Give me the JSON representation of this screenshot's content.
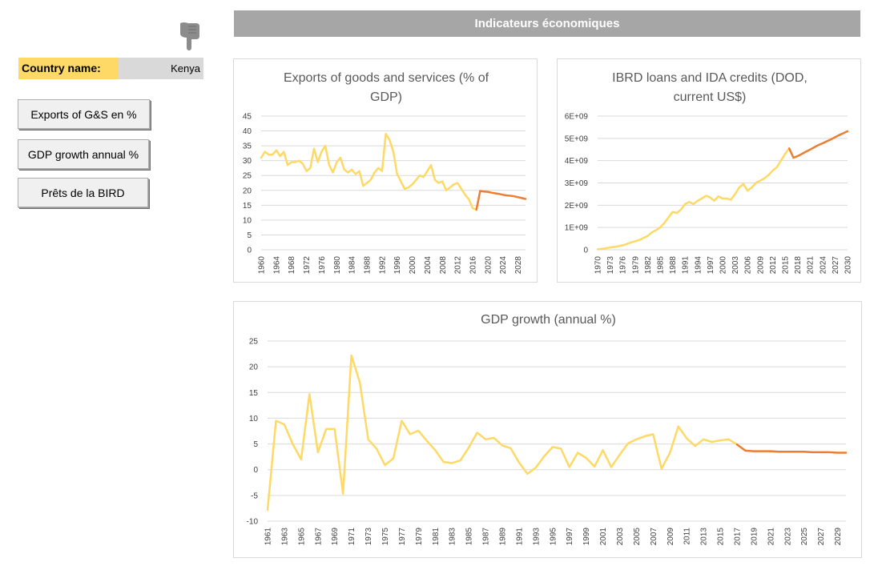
{
  "header": {
    "title": "Indicateurs économiques"
  },
  "country": {
    "label": "Country name:",
    "value": "Kenya"
  },
  "buttons": [
    {
      "label": "Exports of G&S en %"
    },
    {
      "label": "GDP growth annual %"
    },
    {
      "label": "Prêts de la BIRD"
    }
  ],
  "colors": {
    "historical": "#ffd966",
    "forecast": "#ed7d31",
    "header": "#a6a6a6",
    "country_label_bg": "#ffd966",
    "country_value_bg": "#d9d9d9"
  },
  "icons": {
    "pointer": "pointing-hand-icon"
  },
  "chart_data": [
    {
      "id": "exports",
      "type": "line",
      "title_lines": [
        "Exports of goods and services (% of",
        "GDP)"
      ],
      "ylim": [
        0,
        45
      ],
      "yticks": [
        0,
        5,
        10,
        15,
        20,
        25,
        30,
        35,
        40,
        45
      ],
      "ytick_labels": [
        "0",
        "5",
        "10",
        "15",
        "20",
        "25",
        "30",
        "35",
        "40",
        "45"
      ],
      "xlim": [
        1960,
        2030
      ],
      "xticks": [
        1960,
        1964,
        1968,
        1972,
        1976,
        1980,
        1984,
        1988,
        1992,
        1996,
        2000,
        2004,
        2008,
        2012,
        2016,
        2020,
        2024,
        2028
      ],
      "series": [
        {
          "name": "historical",
          "color": "#ffd966",
          "x": [
            1960,
            1961,
            1962,
            1963,
            1964,
            1965,
            1966,
            1967,
            1968,
            1969,
            1970,
            1971,
            1972,
            1973,
            1974,
            1975,
            1976,
            1977,
            1978,
            1979,
            1980,
            1981,
            1982,
            1983,
            1984,
            1985,
            1986,
            1987,
            1988,
            1989,
            1990,
            1991,
            1992,
            1993,
            1994,
            1995,
            1996,
            1997,
            1998,
            1999,
            2000,
            2001,
            2002,
            2003,
            2004,
            2005,
            2006,
            2007,
            2008,
            2009,
            2010,
            2011,
            2012,
            2013,
            2014,
            2015,
            2016,
            2017
          ],
          "y": [
            31,
            33,
            32,
            32,
            33.5,
            31.5,
            33,
            28.5,
            29.5,
            29.5,
            30,
            29,
            26.5,
            27.5,
            34,
            29.5,
            33,
            35,
            28.5,
            26,
            29.5,
            31,
            27,
            26,
            27,
            25.5,
            26.5,
            21.5,
            22.5,
            23.5,
            26,
            27.5,
            26.5,
            39,
            37,
            33,
            25.5,
            23,
            20.5,
            21,
            22,
            23.5,
            25,
            24.5,
            26.5,
            28.5,
            23.5,
            22.5,
            23,
            20,
            21,
            22,
            22.5,
            20.5,
            18.5,
            17,
            14,
            13.5
          ]
        },
        {
          "name": "forecast",
          "color": "#ed7d31",
          "x": [
            2017,
            2018,
            2019,
            2020,
            2021,
            2022,
            2023,
            2024,
            2025,
            2026,
            2027,
            2028,
            2029,
            2030
          ],
          "y": [
            13.5,
            19.8,
            19.6,
            19.5,
            19.2,
            19,
            18.8,
            18.5,
            18.3,
            18.2,
            18,
            17.7,
            17.4,
            17.1
          ]
        }
      ]
    },
    {
      "id": "ibrd",
      "type": "line",
      "title_lines": [
        "IBRD loans and IDA credits (DOD,",
        "current US$)"
      ],
      "ylim": [
        0,
        6000000000
      ],
      "yticks": [
        0,
        1000000000,
        2000000000,
        3000000000,
        4000000000,
        5000000000,
        6000000000
      ],
      "ytick_labels": [
        "0",
        "1E+09",
        "2E+09",
        "3E+09",
        "4E+09",
        "5E+09",
        "6E+09"
      ],
      "xlim": [
        1970,
        2030
      ],
      "xticks": [
        1970,
        1973,
        1976,
        1979,
        1982,
        1985,
        1988,
        1991,
        1994,
        1997,
        2000,
        2003,
        2006,
        2009,
        2012,
        2015,
        2018,
        2021,
        2024,
        2027,
        2030
      ],
      "series": [
        {
          "name": "historical",
          "color": "#ffd966",
          "x": [
            1970,
            1971,
            1972,
            1973,
            1974,
            1975,
            1976,
            1977,
            1978,
            1979,
            1980,
            1981,
            1982,
            1983,
            1984,
            1985,
            1986,
            1987,
            1988,
            1989,
            1990,
            1991,
            1992,
            1993,
            1994,
            1995,
            1996,
            1997,
            1998,
            1999,
            2000,
            2001,
            2002,
            2003,
            2004,
            2005,
            2006,
            2007,
            2008,
            2009,
            2010,
            2011,
            2012,
            2013,
            2014,
            2015,
            2016
          ],
          "y": [
            20000000,
            40000000,
            70000000,
            100000000,
            130000000,
            160000000,
            200000000,
            260000000,
            330000000,
            380000000,
            440000000,
            530000000,
            620000000,
            780000000,
            880000000,
            1000000000,
            1200000000,
            1450000000,
            1700000000,
            1650000000,
            1800000000,
            2050000000,
            2150000000,
            2050000000,
            2200000000,
            2300000000,
            2420000000,
            2350000000,
            2200000000,
            2400000000,
            2300000000,
            2300000000,
            2250000000,
            2500000000,
            2800000000,
            2950000000,
            2650000000,
            2800000000,
            3000000000,
            3100000000,
            3200000000,
            3350000000,
            3550000000,
            3700000000,
            4000000000,
            4300000000,
            4550000000
          ]
        },
        {
          "name": "forecast",
          "color": "#ed7d31",
          "x": [
            2016,
            2017,
            2018,
            2019,
            2020,
            2021,
            2022,
            2023,
            2024,
            2025,
            2026,
            2027,
            2028,
            2029,
            2030
          ],
          "y": [
            4550000000,
            4130000000,
            4200000000,
            4300000000,
            4400000000,
            4500000000,
            4600000000,
            4700000000,
            4780000000,
            4870000000,
            4950000000,
            5050000000,
            5150000000,
            5230000000,
            5320000000
          ]
        }
      ]
    },
    {
      "id": "gdp",
      "type": "line",
      "title_lines": [
        "GDP growth (annual %)"
      ],
      "ylim": [
        -10,
        25
      ],
      "yticks": [
        -10,
        -5,
        0,
        5,
        10,
        15,
        20,
        25
      ],
      "ytick_labels": [
        "-10",
        "-5",
        "0",
        "5",
        "10",
        "15",
        "20",
        "25"
      ],
      "xlim": [
        1961,
        2030
      ],
      "xticks": [
        1961,
        1963,
        1965,
        1967,
        1969,
        1971,
        1973,
        1975,
        1977,
        1979,
        1981,
        1983,
        1985,
        1987,
        1989,
        1991,
        1993,
        1995,
        1997,
        1999,
        2001,
        2003,
        2005,
        2007,
        2009,
        2011,
        2013,
        2015,
        2017,
        2019,
        2021,
        2023,
        2025,
        2027,
        2029
      ],
      "series": [
        {
          "name": "historical",
          "color": "#ffd966",
          "x": [
            1961,
            1962,
            1963,
            1964,
            1965,
            1966,
            1967,
            1968,
            1969,
            1970,
            1971,
            1972,
            1973,
            1974,
            1975,
            1976,
            1977,
            1978,
            1979,
            1980,
            1981,
            1982,
            1983,
            1984,
            1985,
            1986,
            1987,
            1988,
            1989,
            1990,
            1991,
            1992,
            1993,
            1994,
            1995,
            1996,
            1997,
            1998,
            1999,
            2000,
            2001,
            2002,
            2003,
            2004,
            2005,
            2006,
            2007,
            2008,
            2009,
            2010,
            2011,
            2012,
            2013,
            2014,
            2015,
            2016,
            2017
          ],
          "y": [
            -7.8,
            9.5,
            8.8,
            5,
            2,
            14.7,
            3.4,
            7.9,
            7.9,
            -4.7,
            22.2,
            17,
            5.9,
            4.1,
            0.9,
            2.2,
            9.5,
            6.9,
            7.6,
            5.6,
            3.8,
            1.5,
            1.3,
            1.8,
            4.3,
            7.2,
            5.9,
            6.2,
            4.7,
            4.2,
            1.4,
            -0.8,
            0.4,
            2.6,
            4.4,
            4.1,
            0.5,
            3.3,
            2.3,
            0.6,
            3.8,
            0.5,
            2.9,
            5.1,
            5.9,
            6.5,
            6.9,
            0.2,
            3.3,
            8.4,
            6.1,
            4.6,
            5.9,
            5.4,
            5.7,
            5.9,
            4.9
          ]
        },
        {
          "name": "forecast",
          "color": "#ed7d31",
          "x": [
            2017,
            2018,
            2019,
            2020,
            2021,
            2022,
            2023,
            2024,
            2025,
            2026,
            2027,
            2028,
            2029,
            2030
          ],
          "y": [
            4.9,
            3.7,
            3.6,
            3.6,
            3.6,
            3.5,
            3.5,
            3.5,
            3.5,
            3.4,
            3.4,
            3.4,
            3.3,
            3.3
          ]
        }
      ]
    }
  ]
}
